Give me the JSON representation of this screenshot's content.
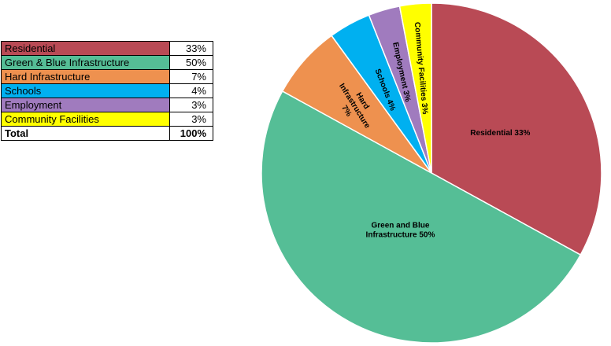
{
  "table": {
    "rows": [
      {
        "label": "Residential",
        "value": "33%",
        "color": "#B94A55"
      },
      {
        "label": "Green & Blue Infrastructure",
        "value": "50%",
        "color": "#55BE96"
      },
      {
        "label": "Hard Infrastructure",
        "value": "7%",
        "color": "#EE914F"
      },
      {
        "label": "Schools",
        "value": "4%",
        "color": "#00B0F0"
      },
      {
        "label": "Employment",
        "value": "3%",
        "color": "#A07BBE"
      },
      {
        "label": "Community Facilities",
        "value": "3%",
        "color": "#FFFF00"
      }
    ],
    "total_label": "Total",
    "total_value": "100%"
  },
  "chart_data": {
    "type": "pie",
    "title": "",
    "start_angle_deg": 0,
    "direction": "clockwise",
    "slices": [
      {
        "label": "Residential 33%",
        "value": 33,
        "color": "#B94A55"
      },
      {
        "label": "Green and Blue Infrastructure 50%",
        "value": 50,
        "color": "#55BE96"
      },
      {
        "label": "Hard Infrastructure 7%",
        "value": 7,
        "color": "#EE914F"
      },
      {
        "label": "Schools 4%",
        "value": 4,
        "color": "#00B0F0"
      },
      {
        "label": "Employment 3%",
        "value": 3,
        "color": "#A07BBE"
      },
      {
        "label": "Community Facilities 3%",
        "value": 3,
        "color": "#FFFF00"
      }
    ]
  }
}
